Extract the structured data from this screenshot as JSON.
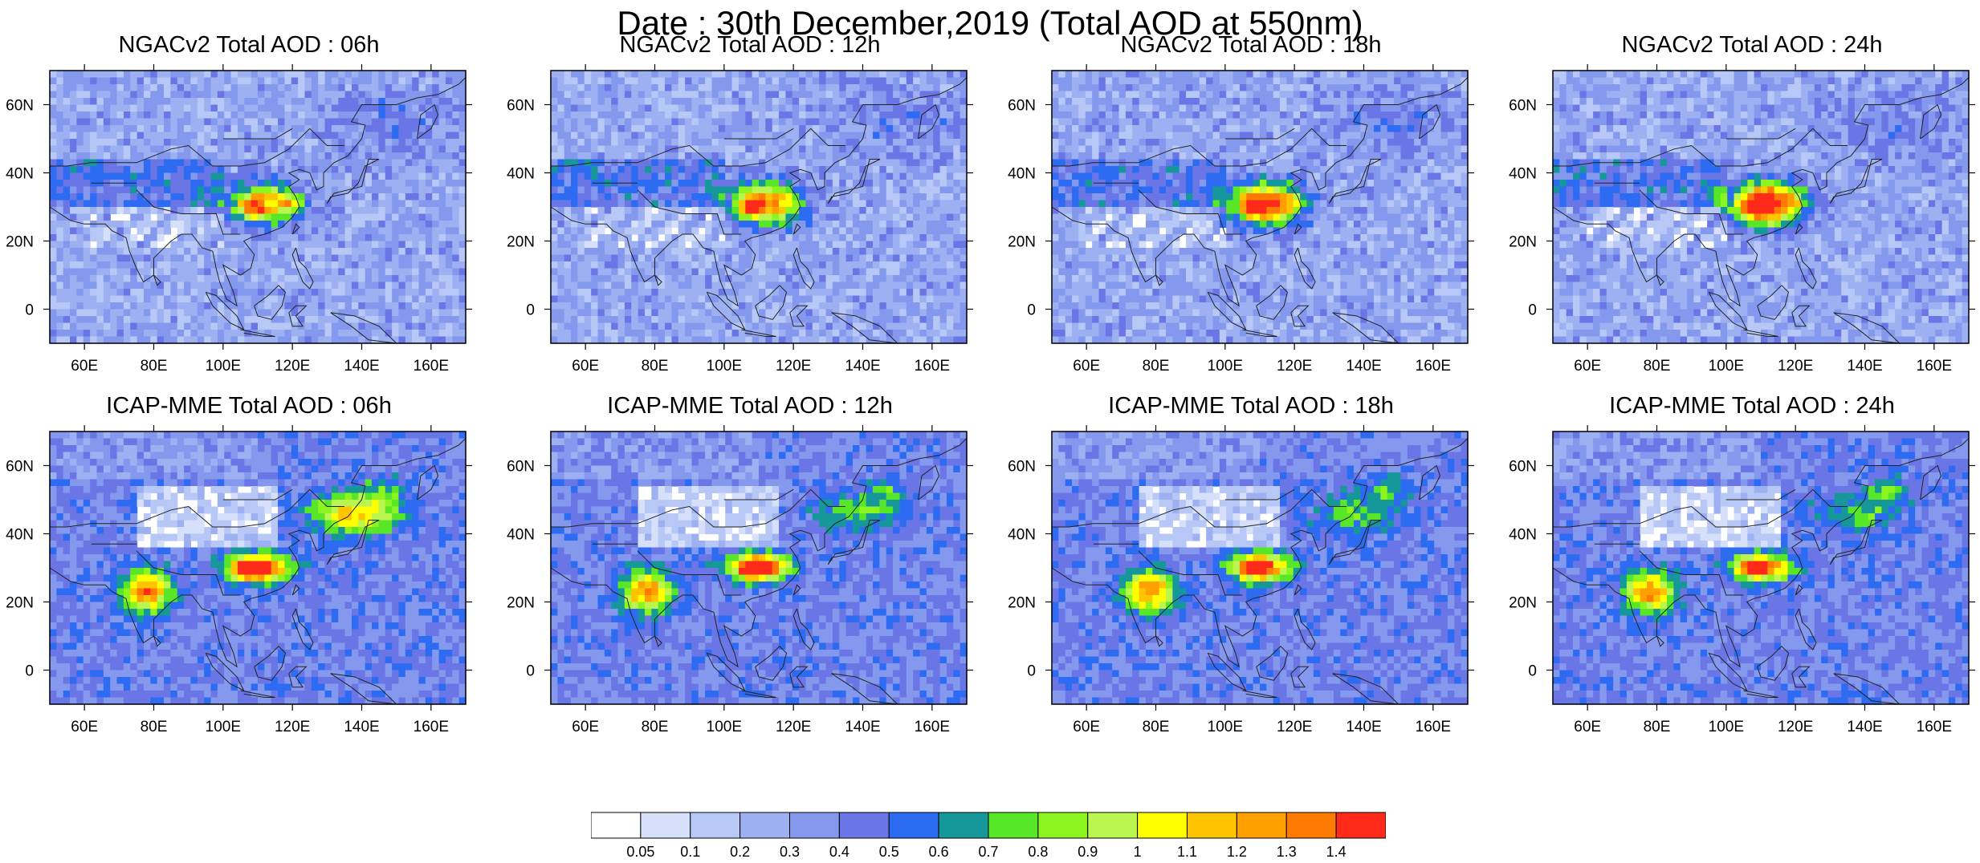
{
  "title": "Date : 30th December,2019 (Total AOD at 550nm)",
  "panels": [
    {
      "title": "NGACv2 Total AOD : 06h"
    },
    {
      "title": "NGACv2 Total AOD : 12h"
    },
    {
      "title": "NGACv2 Total AOD : 18h"
    },
    {
      "title": "NGACv2 Total AOD : 24h"
    },
    {
      "title": "ICAP-MME Total AOD : 06h"
    },
    {
      "title": "ICAP-MME Total AOD : 12h"
    },
    {
      "title": "ICAP-MME Total AOD : 18h"
    },
    {
      "title": "ICAP-MME Total AOD : 24h"
    }
  ],
  "axes": {
    "lon_ticks": [
      "60E",
      "80E",
      "100E",
      "120E",
      "140E",
      "160E"
    ],
    "lat_ticks": [
      "60N",
      "40N",
      "20N",
      "0"
    ],
    "lon_range": [
      50,
      170
    ],
    "lat_range": [
      -10,
      70
    ]
  },
  "colorbar": {
    "labels": [
      "0.05",
      "0.1",
      "0.2",
      "0.3",
      "0.4",
      "0.5",
      "0.6",
      "0.7",
      "0.8",
      "0.9",
      "1",
      "1.1",
      "1.2",
      "1.3",
      "1.4"
    ],
    "colors": [
      "#ffffff",
      "#d6e0fa",
      "#b8c8f6",
      "#9db1f2",
      "#8499ee",
      "#6a76e6",
      "#2d6cf2",
      "#16989a",
      "#57e628",
      "#8cf41e",
      "#bbf550",
      "#ffff00",
      "#ffc400",
      "#ffa000",
      "#ff7a00",
      "#ff2a1a"
    ]
  }
}
